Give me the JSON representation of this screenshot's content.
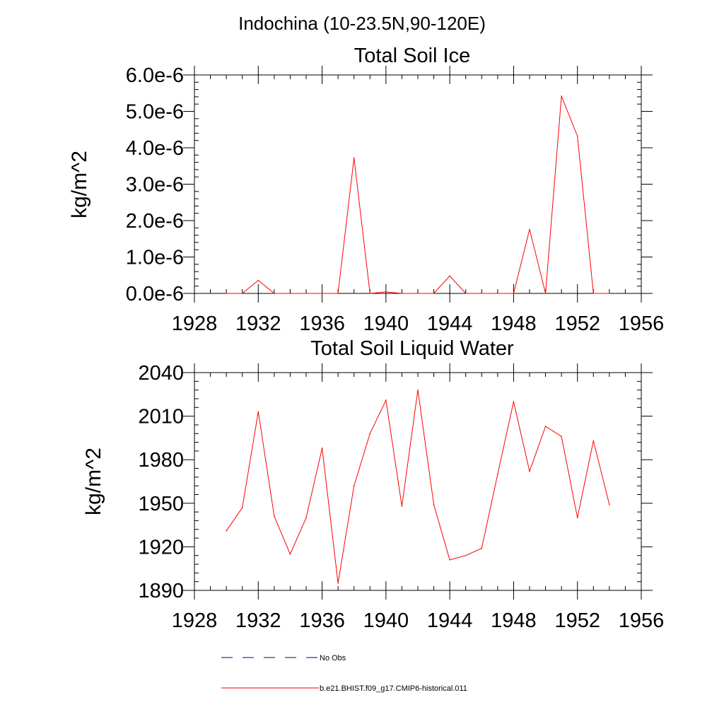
{
  "suptitle": "Indochina (10-23.5N,90-120E)",
  "colors": {
    "model": "#ff0000",
    "obs": "#000080",
    "axes": "#000000"
  },
  "chart_data": [
    {
      "type": "line",
      "title": "Total Soil Ice",
      "ylabel": "kg/m^2",
      "xlim": [
        1928,
        1956
      ],
      "ylim": [
        0,
        6e-06
      ],
      "xticks": [
        1928,
        1932,
        1936,
        1940,
        1944,
        1948,
        1952,
        1956
      ],
      "xtick_labels": [
        "1928",
        "1932",
        "1936",
        "1940",
        "1944",
        "1948",
        "1952",
        "1956"
      ],
      "yticks": [
        0,
        1e-06,
        2e-06,
        3e-06,
        4e-06,
        5e-06,
        6e-06
      ],
      "ytick_labels": [
        "0.0e-6",
        "1.0e-6",
        "2.0e-6",
        "3.0e-6",
        "4.0e-6",
        "5.0e-6",
        "6.0e-6"
      ],
      "series": [
        {
          "name": "b.e21.BHIST.f09_g17.CMIP6-historical.011",
          "x": [
            1930,
            1931,
            1932,
            1933,
            1934,
            1935,
            1936,
            1937,
            1938,
            1939,
            1940,
            1941,
            1942,
            1943,
            1944,
            1945,
            1946,
            1947,
            1948,
            1949,
            1950,
            1951,
            1952,
            1953,
            1954
          ],
          "y": [
            0,
            0,
            3.6e-07,
            0,
            0,
            0,
            0,
            0,
            3.72e-06,
            0,
            4e-08,
            0,
            0,
            0,
            4.8e-07,
            0,
            0,
            0,
            0,
            1.76e-06,
            0,
            5.42e-06,
            4.32e-06,
            0,
            0
          ]
        }
      ]
    },
    {
      "type": "line",
      "title": "Total Soil Liquid Water",
      "ylabel": "kg/m^2",
      "xlim": [
        1928,
        1956
      ],
      "ylim": [
        1890,
        2040
      ],
      "xticks": [
        1928,
        1932,
        1936,
        1940,
        1944,
        1948,
        1952,
        1956
      ],
      "xtick_labels": [
        "1928",
        "1932",
        "1936",
        "1940",
        "1944",
        "1948",
        "1952",
        "1956"
      ],
      "yticks": [
        1890,
        1920,
        1950,
        1980,
        2010,
        2040
      ],
      "ytick_labels": [
        "1890",
        "1920",
        "1950",
        "1980",
        "2010",
        "2040"
      ],
      "series": [
        {
          "name": "b.e21.BHIST.f09_g17.CMIP6-historical.011",
          "x": [
            1930,
            1931,
            1932,
            1933,
            1934,
            1935,
            1936,
            1937,
            1938,
            1939,
            1940,
            1941,
            1942,
            1943,
            1944,
            1945,
            1946,
            1947,
            1948,
            1949,
            1950,
            1951,
            1952,
            1953,
            1954
          ],
          "y": [
            1931,
            1947,
            2013,
            1941,
            1915,
            1940,
            1988,
            1895,
            1962,
            1998,
            2021,
            1948,
            2028,
            1949,
            1911,
            1914,
            1919,
            1970,
            2020,
            1972,
            2003,
            1996,
            1940,
            1993,
            1949
          ]
        }
      ]
    }
  ],
  "legend": [
    {
      "label": "No Obs",
      "style": "dashed",
      "color": "#000080"
    },
    {
      "label": "b.e21.BHIST.f09_g17.CMIP6-historical.011",
      "style": "solid",
      "color": "#ff0000"
    }
  ]
}
